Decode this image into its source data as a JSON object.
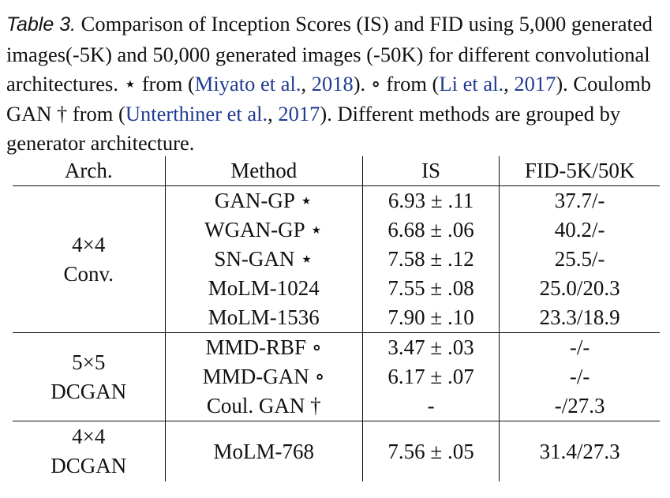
{
  "caption": {
    "label": "Table 3.",
    "text_1": " Comparison of Inception Scores (IS) and FID using 5,000 generated images(-5K) and 50,000 generated images (-50K) for different convolutional architectures. ⋆ from (",
    "cite_1a": "Miyato et al.",
    "sep_1": ", ",
    "cite_1b": "2018",
    "text_2": "). ∘ from (",
    "cite_2a": "Li et al.",
    "sep_2": ", ",
    "cite_2b": "2017",
    "text_3": "). Coulomb GAN † from (",
    "cite_3a": "Unterthiner et al.",
    "sep_3": ", ",
    "cite_3b": "2017",
    "text_4": "). Different methods are grouped by generator architecture."
  },
  "table": {
    "headers": [
      "Arch.",
      "Method",
      "IS",
      "FID-5K/50K"
    ],
    "groups": [
      {
        "arch": [
          "4×4",
          "Conv."
        ],
        "rows": [
          {
            "method": "GAN-GP ⋆",
            "is": "6.93 ± .11",
            "fid": "37.7/-",
            "bold": false
          },
          {
            "method": "WGAN-GP ⋆",
            "is": "6.68 ± .06",
            "fid": "40.2/-",
            "bold": false
          },
          {
            "method": "SN-GAN ⋆",
            "is": "7.58 ± .12",
            "fid": "25.5/-",
            "bold": false
          },
          {
            "method": "MoLM-1024",
            "is": "7.55 ± .08",
            "fid": "25.0/20.3",
            "bold": true
          },
          {
            "method": "MoLM-1536",
            "is": "7.90 ± .10",
            "fid": "23.3/18.9",
            "bold": true
          }
        ]
      },
      {
        "arch": [
          "5×5",
          "DCGAN"
        ],
        "rows": [
          {
            "method": "MMD-RBF ∘",
            "is": "3.47 ± .03",
            "fid": "-/-",
            "bold": false
          },
          {
            "method": "MMD-GAN ∘",
            "is": "6.17 ± .07",
            "fid": "-/-",
            "bold": false
          },
          {
            "method": "Coul. GAN †",
            "is": "-",
            "fid": "-/27.3",
            "bold": false
          }
        ]
      },
      {
        "arch": [
          "4×4",
          "DCGAN"
        ],
        "rows": [
          {
            "method": "MoLM-768",
            "is": "7.56 ± .05",
            "fid": "31.4/27.3",
            "bold": true
          }
        ]
      }
    ]
  }
}
